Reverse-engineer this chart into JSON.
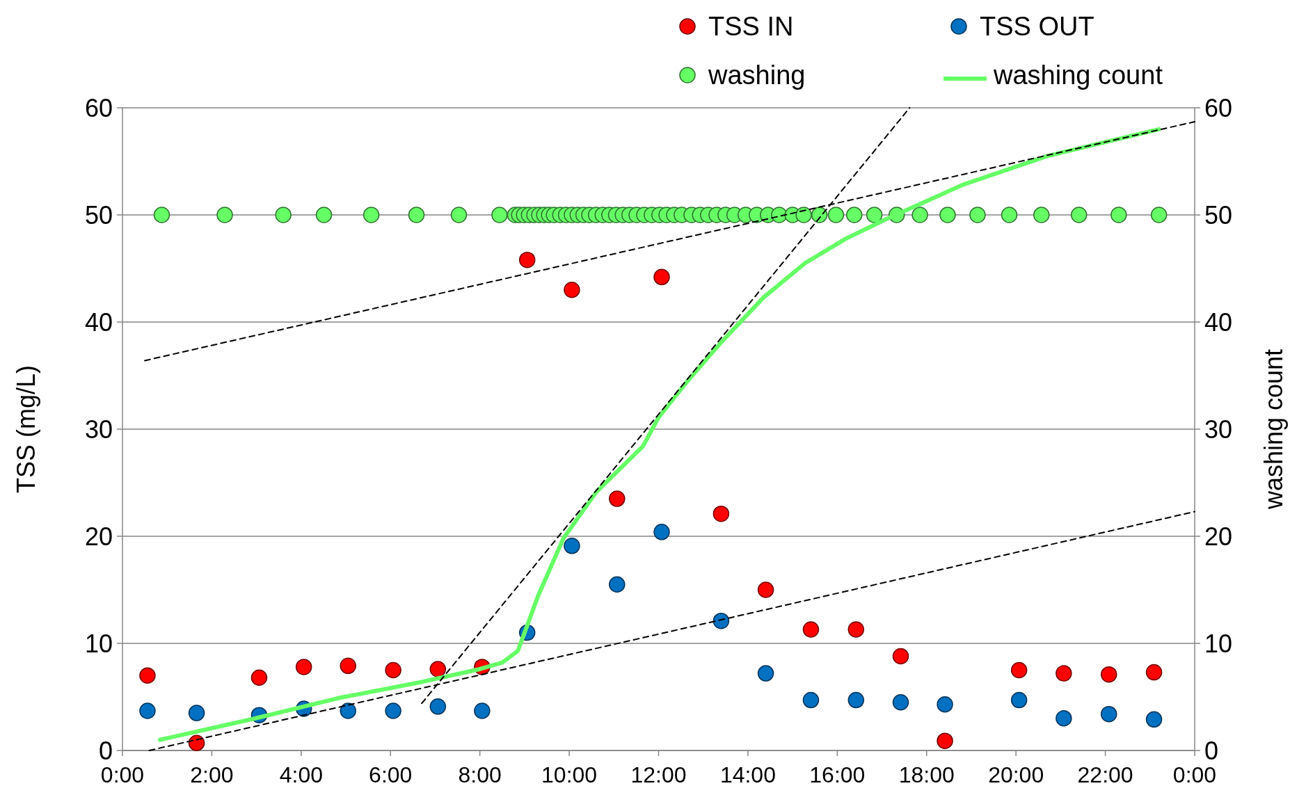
{
  "chart_data": {
    "type": "scatter",
    "ylabel": "TSS (mg/L)",
    "y2label": "washing count",
    "xlim": [
      0,
      24
    ],
    "xticks": [
      {
        "value": 0,
        "label": "0:00"
      },
      {
        "value": 2,
        "label": "2:00"
      },
      {
        "value": 4,
        "label": "4:00"
      },
      {
        "value": 6,
        "label": "6:00"
      },
      {
        "value": 8,
        "label": "8:00"
      },
      {
        "value": 10,
        "label": "10:00"
      },
      {
        "value": 12,
        "label": "12:00"
      },
      {
        "value": 14,
        "label": "14:00"
      },
      {
        "value": 16,
        "label": "16:00"
      },
      {
        "value": 18,
        "label": "18:00"
      },
      {
        "value": 20,
        "label": "20:00"
      },
      {
        "value": 22,
        "label": "22:00"
      },
      {
        "value": 24,
        "label": "0:00"
      }
    ],
    "ylim": [
      0,
      60
    ],
    "yticks": [
      0,
      10,
      20,
      30,
      40,
      50,
      60
    ],
    "y2lim": [
      0,
      60
    ],
    "y2ticks": [
      0,
      10,
      20,
      30,
      40,
      50,
      60
    ],
    "grid": "y",
    "legend": "top right",
    "marker": "circle",
    "series": [
      {
        "name": "TSS IN",
        "color": "#ff0000",
        "x": [
          0.56,
          1.66,
          3.06,
          4.06,
          5.05,
          6.06,
          7.06,
          8.05,
          9.06,
          10.06,
          11.07,
          12.07,
          13.4,
          14.4,
          15.41,
          16.42,
          17.42,
          18.41,
          20.07,
          21.07,
          22.08,
          23.09
        ],
        "values": [
          7.0,
          0.7,
          6.8,
          7.8,
          7.9,
          7.5,
          7.6,
          7.8,
          45.8,
          43.0,
          23.5,
          44.2,
          22.1,
          15.0,
          11.3,
          11.3,
          8.8,
          0.9,
          7.5,
          7.2,
          7.1,
          7.3
        ]
      },
      {
        "name": "TSS OUT",
        "color": "#0070c0",
        "x": [
          0.56,
          1.66,
          3.06,
          4.06,
          5.05,
          6.06,
          7.06,
          8.05,
          9.06,
          10.06,
          11.07,
          12.07,
          13.4,
          14.4,
          15.41,
          16.42,
          17.42,
          18.41,
          20.07,
          21.07,
          22.08,
          23.09
        ],
        "values": [
          3.7,
          3.5,
          3.3,
          3.9,
          3.7,
          3.7,
          4.1,
          3.7,
          11.0,
          19.1,
          15.5,
          20.4,
          12.1,
          7.2,
          4.7,
          4.7,
          4.5,
          4.3,
          4.7,
          3.0,
          3.4,
          2.9
        ]
      },
      {
        "name": "washing",
        "color": "#66ff66",
        "x": [
          0.88,
          2.29,
          3.6,
          4.51,
          5.57,
          6.58,
          7.53,
          8.44,
          8.79,
          8.88,
          8.99,
          9.1,
          9.22,
          9.33,
          9.44,
          9.55,
          9.66,
          9.8,
          9.93,
          10.06,
          10.19,
          10.32,
          10.45,
          10.6,
          10.75,
          10.9,
          11.05,
          11.2,
          11.35,
          11.51,
          11.68,
          11.85,
          12.02,
          12.18,
          12.35,
          12.52,
          12.74,
          12.93,
          13.11,
          13.3,
          13.5,
          13.7,
          13.95,
          14.2,
          14.45,
          14.7,
          15.0,
          15.25,
          15.6,
          15.97,
          16.38,
          16.83,
          17.33,
          17.85,
          18.47,
          19.14,
          19.85,
          20.57,
          21.41,
          22.3,
          23.2
        ],
        "values": [
          50,
          50,
          50,
          50,
          50,
          50,
          50,
          50,
          50,
          50,
          50,
          50,
          50,
          50,
          50,
          50,
          50,
          50,
          50,
          50,
          50,
          50,
          50,
          50,
          50,
          50,
          50,
          50,
          50,
          50,
          50,
          50,
          50,
          50,
          50,
          50,
          50,
          50,
          50,
          50,
          50,
          50,
          50,
          50,
          50,
          50,
          50,
          50,
          50,
          50,
          50,
          50,
          50,
          50,
          50,
          50,
          50,
          50,
          50,
          50,
          50
        ]
      },
      {
        "name": "washing count",
        "type": "line",
        "axis": "y2",
        "color": "#66ff66",
        "marker": "none",
        "x": [
          0.84,
          2.98,
          4.84,
          6.7,
          8.0,
          8.5,
          8.85,
          9.3,
          9.87,
          10.6,
          11.65,
          12.0,
          12.67,
          13.4,
          14.35,
          15.28,
          16.2,
          17.14,
          17.9,
          18.8,
          20.7,
          23.2
        ],
        "values": [
          1.0,
          3.0,
          4.9,
          6.4,
          7.6,
          8.2,
          9.3,
          14.4,
          19.8,
          24.1,
          28.4,
          31.1,
          34.6,
          38.1,
          42.3,
          45.5,
          47.8,
          49.7,
          51.1,
          52.8,
          55.5,
          58.0
        ]
      },
      {
        "type": "line",
        "color": "#000000",
        "line_style": "dashed",
        "marker": "none",
        "x": [
          0.5,
          24
        ],
        "values": [
          36.4,
          58.7
        ]
      },
      {
        "type": "line",
        "color": "#000000",
        "line_style": "dashed",
        "marker": "none",
        "x": [
          0.6,
          24
        ],
        "values": [
          0,
          22.3
        ]
      },
      {
        "type": "line",
        "color": "#000000",
        "line_style": "dashed",
        "marker": "none",
        "x": [
          6.7,
          17.62
        ],
        "values": [
          4.4,
          60
        ]
      }
    ]
  }
}
